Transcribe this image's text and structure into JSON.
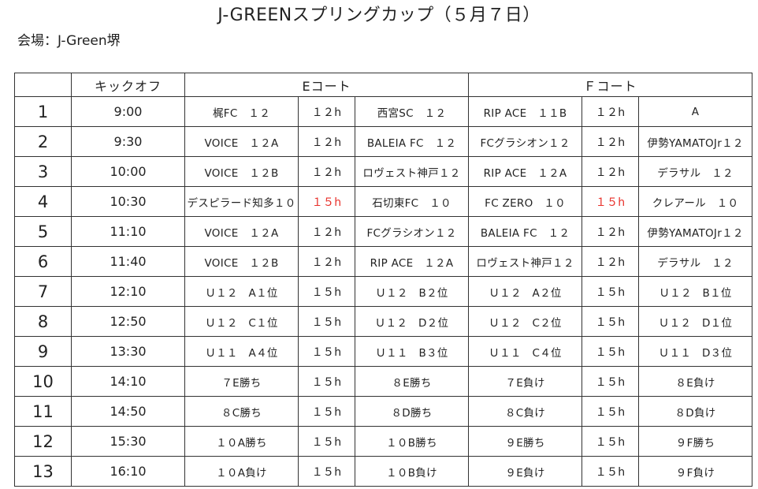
{
  "title": "J-GREENスプリングカップ（５月７日）",
  "venue": "会場：J-Green堺",
  "header": {
    "kickoff": "キックオフ",
    "court_e": "Eコート",
    "court_f": "Ｆコート"
  },
  "colors": {
    "highlight": "#e8302a"
  },
  "rows": [
    {
      "no": "1",
      "time": "9:00",
      "e_home": "梶FC　１２",
      "e_len": "１２h",
      "e_away": "西宮SC　１２",
      "f_home": "RIP ACE　１１B",
      "f_len": "１２h",
      "f_away": "A"
    },
    {
      "no": "2",
      "time": "9:30",
      "e_home": "VOICE　１２A",
      "e_len": "１２h",
      "e_away": "BALEIA FC　１２",
      "f_home": "FCグラシオン１２",
      "f_len": "１２h",
      "f_away": "伊勢YAMATOJr１２"
    },
    {
      "no": "3",
      "time": "10:00",
      "e_home": "VOICE　１２B",
      "e_len": "１２h",
      "e_away": "ロヴェスト神戸１２",
      "f_home": "RIP ACE　１２A",
      "f_len": "１２h",
      "f_away": "デラサル　１２"
    },
    {
      "no": "4",
      "time": "10:30",
      "e_home": "デスピラード知多１０",
      "e_len": "１５h",
      "e_away": "石切東FC　１０",
      "f_home": "FC ZERO　１０",
      "f_len": "１５h",
      "f_away": "クレアール　１０"
    },
    {
      "no": "5",
      "time": "11:10",
      "e_home": "VOICE　１２A",
      "e_len": "１２h",
      "e_away": "FCグラシオン１２",
      "f_home": "BALEIA FC　１２",
      "f_len": "１２h",
      "f_away": "伊勢YAMATOJr１２"
    },
    {
      "no": "6",
      "time": "11:40",
      "e_home": "VOICE　１２B",
      "e_len": "１２h",
      "e_away": "RIP ACE　１２A",
      "f_home": "ロヴェスト神戸１２",
      "f_len": "１２h",
      "f_away": "デラサル　１２"
    },
    {
      "no": "7",
      "time": "12:10",
      "e_home": "Ｕ１２　A１位",
      "e_len": "１５h",
      "e_away": "Ｕ１２　B２位",
      "f_home": "Ｕ１２　A２位",
      "f_len": "１５h",
      "f_away": "Ｕ１２　B１位"
    },
    {
      "no": "8",
      "time": "12:50",
      "e_home": "Ｕ１２　C１位",
      "e_len": "１５h",
      "e_away": "Ｕ１２　D２位",
      "f_home": "Ｕ１２　C２位",
      "f_len": "１５h",
      "f_away": "Ｕ１２　D１位"
    },
    {
      "no": "9",
      "time": "13:30",
      "e_home": "Ｕ１１　A４位",
      "e_len": "１５h",
      "e_away": "Ｕ１１　B３位",
      "f_home": "Ｕ１１　C４位",
      "f_len": "１５h",
      "f_away": "Ｕ１１　D３位"
    },
    {
      "no": "10",
      "time": "14:10",
      "e_home": "７E勝ち",
      "e_len": "１５h",
      "e_away": "８E勝ち",
      "f_home": "７E負け",
      "f_len": "１５h",
      "f_away": "８E負け"
    },
    {
      "no": "11",
      "time": "14:50",
      "e_home": "８C勝ち",
      "e_len": "１５h",
      "e_away": "８D勝ち",
      "f_home": "８C負け",
      "f_len": "１５h",
      "f_away": "８D負け"
    },
    {
      "no": "12",
      "time": "15:30",
      "e_home": "１０A勝ち",
      "e_len": "１５h",
      "e_away": "１０B勝ち",
      "f_home": "９E勝ち",
      "f_len": "１５h",
      "f_away": "９F勝ち"
    },
    {
      "no": "13",
      "time": "16:10",
      "e_home": "１０A負け",
      "e_len": "１５h",
      "e_away": "１０B負け",
      "f_home": "９E負け",
      "f_len": "１５h",
      "f_away": "９F負け"
    }
  ],
  "highlighted_rows": [
    3
  ]
}
